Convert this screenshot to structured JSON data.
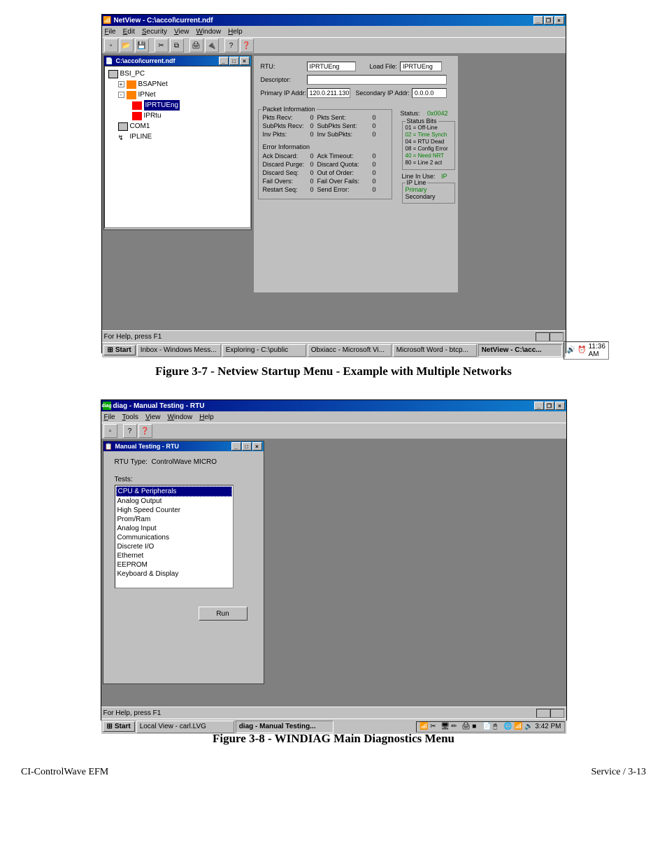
{
  "netview": {
    "app_title": "NetView - C:\\accol\\current.ndf",
    "menus": [
      "File",
      "Edit",
      "Security",
      "View",
      "Window",
      "Help"
    ],
    "child_title": "C:\\accol\\current.ndf",
    "tree": {
      "root": "BSI_PC",
      "net1": "BSAPNet",
      "net2": "IPNet",
      "rtu_sel": "IPRTUEng",
      "rtu2": "IPRtu",
      "com": "COM1",
      "line": "IPLINE"
    },
    "rtu_panel": {
      "rtu_lbl": "RTU:",
      "rtu_val": "IPRTUEng",
      "loadfile_lbl": "Load File:",
      "loadfile_val": "IPRTUEng",
      "desc_lbl": "Descriptor:",
      "pip_lbl": "Primary IP Addr:",
      "pip_val": "120.0.211.130",
      "sip_lbl": "Secondary IP Addr:",
      "sip_val": "0.0.0.0"
    },
    "pkt": {
      "title": "Packet Information",
      "rows": [
        {
          "l": "Pkts Recv:",
          "lv": "0",
          "r": "Pkts Sent:",
          "rv": "0"
        },
        {
          "l": "SubPkts Recv:",
          "lv": "0",
          "r": "SubPkts Sent:",
          "rv": "0"
        },
        {
          "l": "Inv Pkts:",
          "lv": "0",
          "r": "Inv SubPkts:",
          "rv": "0"
        }
      ],
      "err_title": "Error Information",
      "err_rows": [
        {
          "l": "Ack Discard:",
          "lv": "0",
          "r": "Ack Timeout:",
          "rv": "0"
        },
        {
          "l": "Discard Purge:",
          "lv": "0",
          "r": "Discard Quota:",
          "rv": "0"
        },
        {
          "l": "Discard Seq:",
          "lv": "0",
          "r": "Out of Order:",
          "rv": "0"
        },
        {
          "l": "Fail Overs:",
          "lv": "0",
          "r": "Fail Over Fails:",
          "rv": "0"
        },
        {
          "l": "Restart Seq:",
          "lv": "0",
          "r": "Send Error:",
          "rv": "0"
        }
      ],
      "status_lbl": "Status:",
      "status_val": "0x0042",
      "status_bits_title": "Status Bits",
      "bits": [
        "01 = Off-Line",
        "02 = Time Synch",
        "04 = RTU Dead",
        "08 = Config Error",
        "40 = Need  NRT",
        "80 = Line 2 act"
      ],
      "line_lbl": "Line In Use:",
      "line_val": "IP",
      "ipline_title": "IP Line",
      "primary": "Primary",
      "secondary": "Secondary"
    },
    "statusbar": "For Help, press F1",
    "taskbar": {
      "start": "Start",
      "items": [
        "Inbox - Windows Mess...",
        "Exploring - C:\\public",
        "Obxiacc - Microsoft Vi...",
        "Microsoft Word - btcp...",
        "NetView - C:\\acc..."
      ],
      "time": "11:36 AM"
    }
  },
  "caption1": "Figure 3-7 - Netview Startup Menu - Example with Multiple Networks",
  "diag": {
    "app_title": "diag - Manual Testing - RTU",
    "menus": [
      "File",
      "Tools",
      "View",
      "Window",
      "Help"
    ],
    "child_title": "Manual Testing - RTU",
    "rtu_type_lbl": "RTU Type:",
    "rtu_type_val": "ControlWave MICRO",
    "tests_lbl": "Tests:",
    "tests": [
      "CPU & Peripherals",
      "Analog Output",
      "High Speed Counter",
      "Prom/Ram",
      "Analog Input",
      "Communications",
      "Discrete I/O",
      "Ethernet",
      "EEPROM",
      "Keyboard & Display"
    ],
    "run_btn": "Run",
    "statusbar": "For Help, press F1",
    "taskbar": {
      "start": "Start",
      "items": [
        "Local View - carl.LVG",
        "diag - Manual Testing..."
      ],
      "time": "3:42 PM"
    }
  },
  "caption2": "Figure 3-8 - WINDIAG Main Diagnostics Menu",
  "footer_left": "CI-ControlWave EFM",
  "footer_right": "Service / 3-13"
}
